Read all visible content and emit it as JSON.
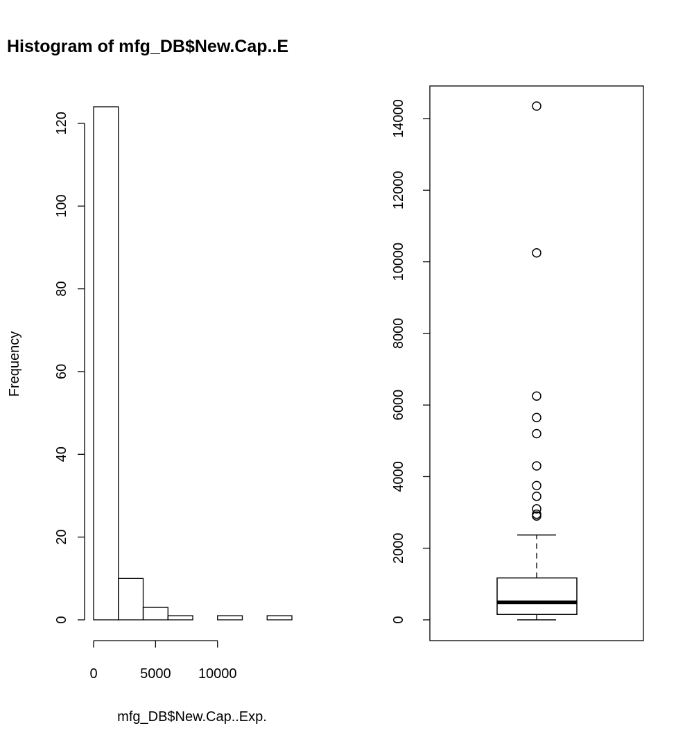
{
  "chart_data": [
    {
      "type": "bar",
      "title": "Histogram of mfg_DB$New.Cap..E",
      "xlabel": "mfg_DB$New.Cap..Exp.",
      "ylabel": "Frequency",
      "bins": [
        {
          "from": 0,
          "to": 2000,
          "count": 124
        },
        {
          "from": 2000,
          "to": 4000,
          "count": 10
        },
        {
          "from": 4000,
          "to": 6000,
          "count": 3
        },
        {
          "from": 6000,
          "to": 8000,
          "count": 1
        },
        {
          "from": 8000,
          "to": 10000,
          "count": 0
        },
        {
          "from": 10000,
          "to": 12000,
          "count": 1
        },
        {
          "from": 12000,
          "to": 14000,
          "count": 0
        },
        {
          "from": 14000,
          "to": 16000,
          "count": 1
        }
      ],
      "xlim": [
        0,
        16000
      ],
      "ylim": [
        0,
        124
      ],
      "xticks": [
        0,
        5000,
        10000
      ],
      "yticks": [
        0,
        20,
        40,
        60,
        80,
        100,
        120
      ]
    },
    {
      "type": "boxplot",
      "ylim": [
        0,
        14350
      ],
      "yticks": [
        0,
        2000,
        4000,
        6000,
        8000,
        10000,
        12000,
        14000
      ],
      "whisker_low": 0,
      "q1": 150,
      "median": 490,
      "q3": 1170,
      "whisker_high": 2370,
      "outliers": [
        14350,
        10250,
        6250,
        5650,
        5200,
        4300,
        3750,
        3450,
        3100,
        2950,
        2900
      ]
    }
  ]
}
